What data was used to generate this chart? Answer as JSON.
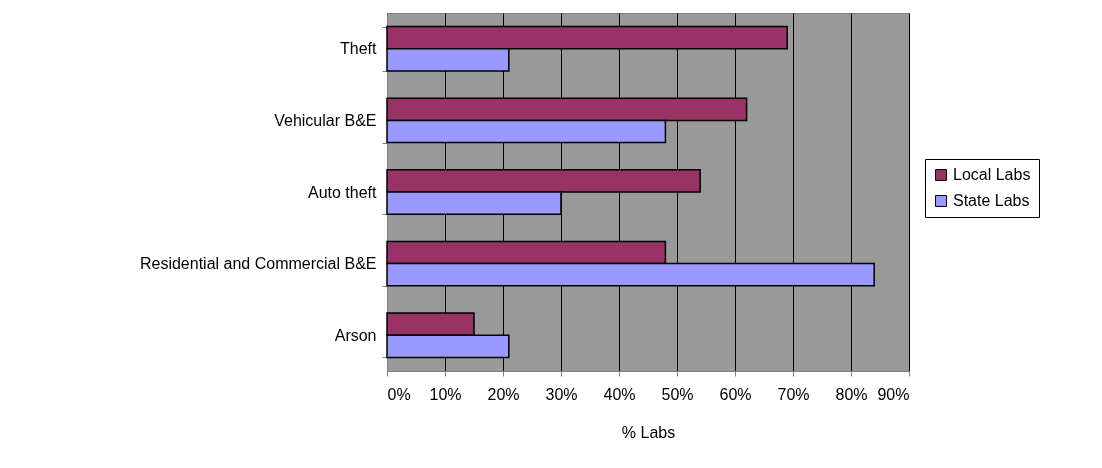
{
  "chart_data": {
    "type": "bar",
    "orientation": "horizontal",
    "xlabel": "% Labs",
    "categories": [
      "Theft",
      "Vehicular B&E",
      "Auto theft",
      "Residential and Commercial B&E",
      "Arson"
    ],
    "series": [
      {
        "name": "Local Labs",
        "color": "#993366",
        "values": [
          69,
          62,
          54,
          48,
          15
        ]
      },
      {
        "name": "State Labs",
        "color": "#9999ff",
        "values": [
          21,
          48,
          30,
          84,
          21
        ]
      }
    ],
    "xlim": [
      0,
      90
    ],
    "xticks": [
      {
        "value": 0,
        "label": "0%"
      },
      {
        "value": 10,
        "label": "10%"
      },
      {
        "value": 20,
        "label": "20%"
      },
      {
        "value": 30,
        "label": "30%"
      },
      {
        "value": 40,
        "label": "40%"
      },
      {
        "value": 50,
        "label": "50%"
      },
      {
        "value": 60,
        "label": "60%"
      },
      {
        "value": 70,
        "label": "70%"
      },
      {
        "value": 80,
        "label": "80%"
      },
      {
        "value": 90,
        "label": "90%"
      }
    ],
    "grid": "x",
    "legend": "right"
  }
}
